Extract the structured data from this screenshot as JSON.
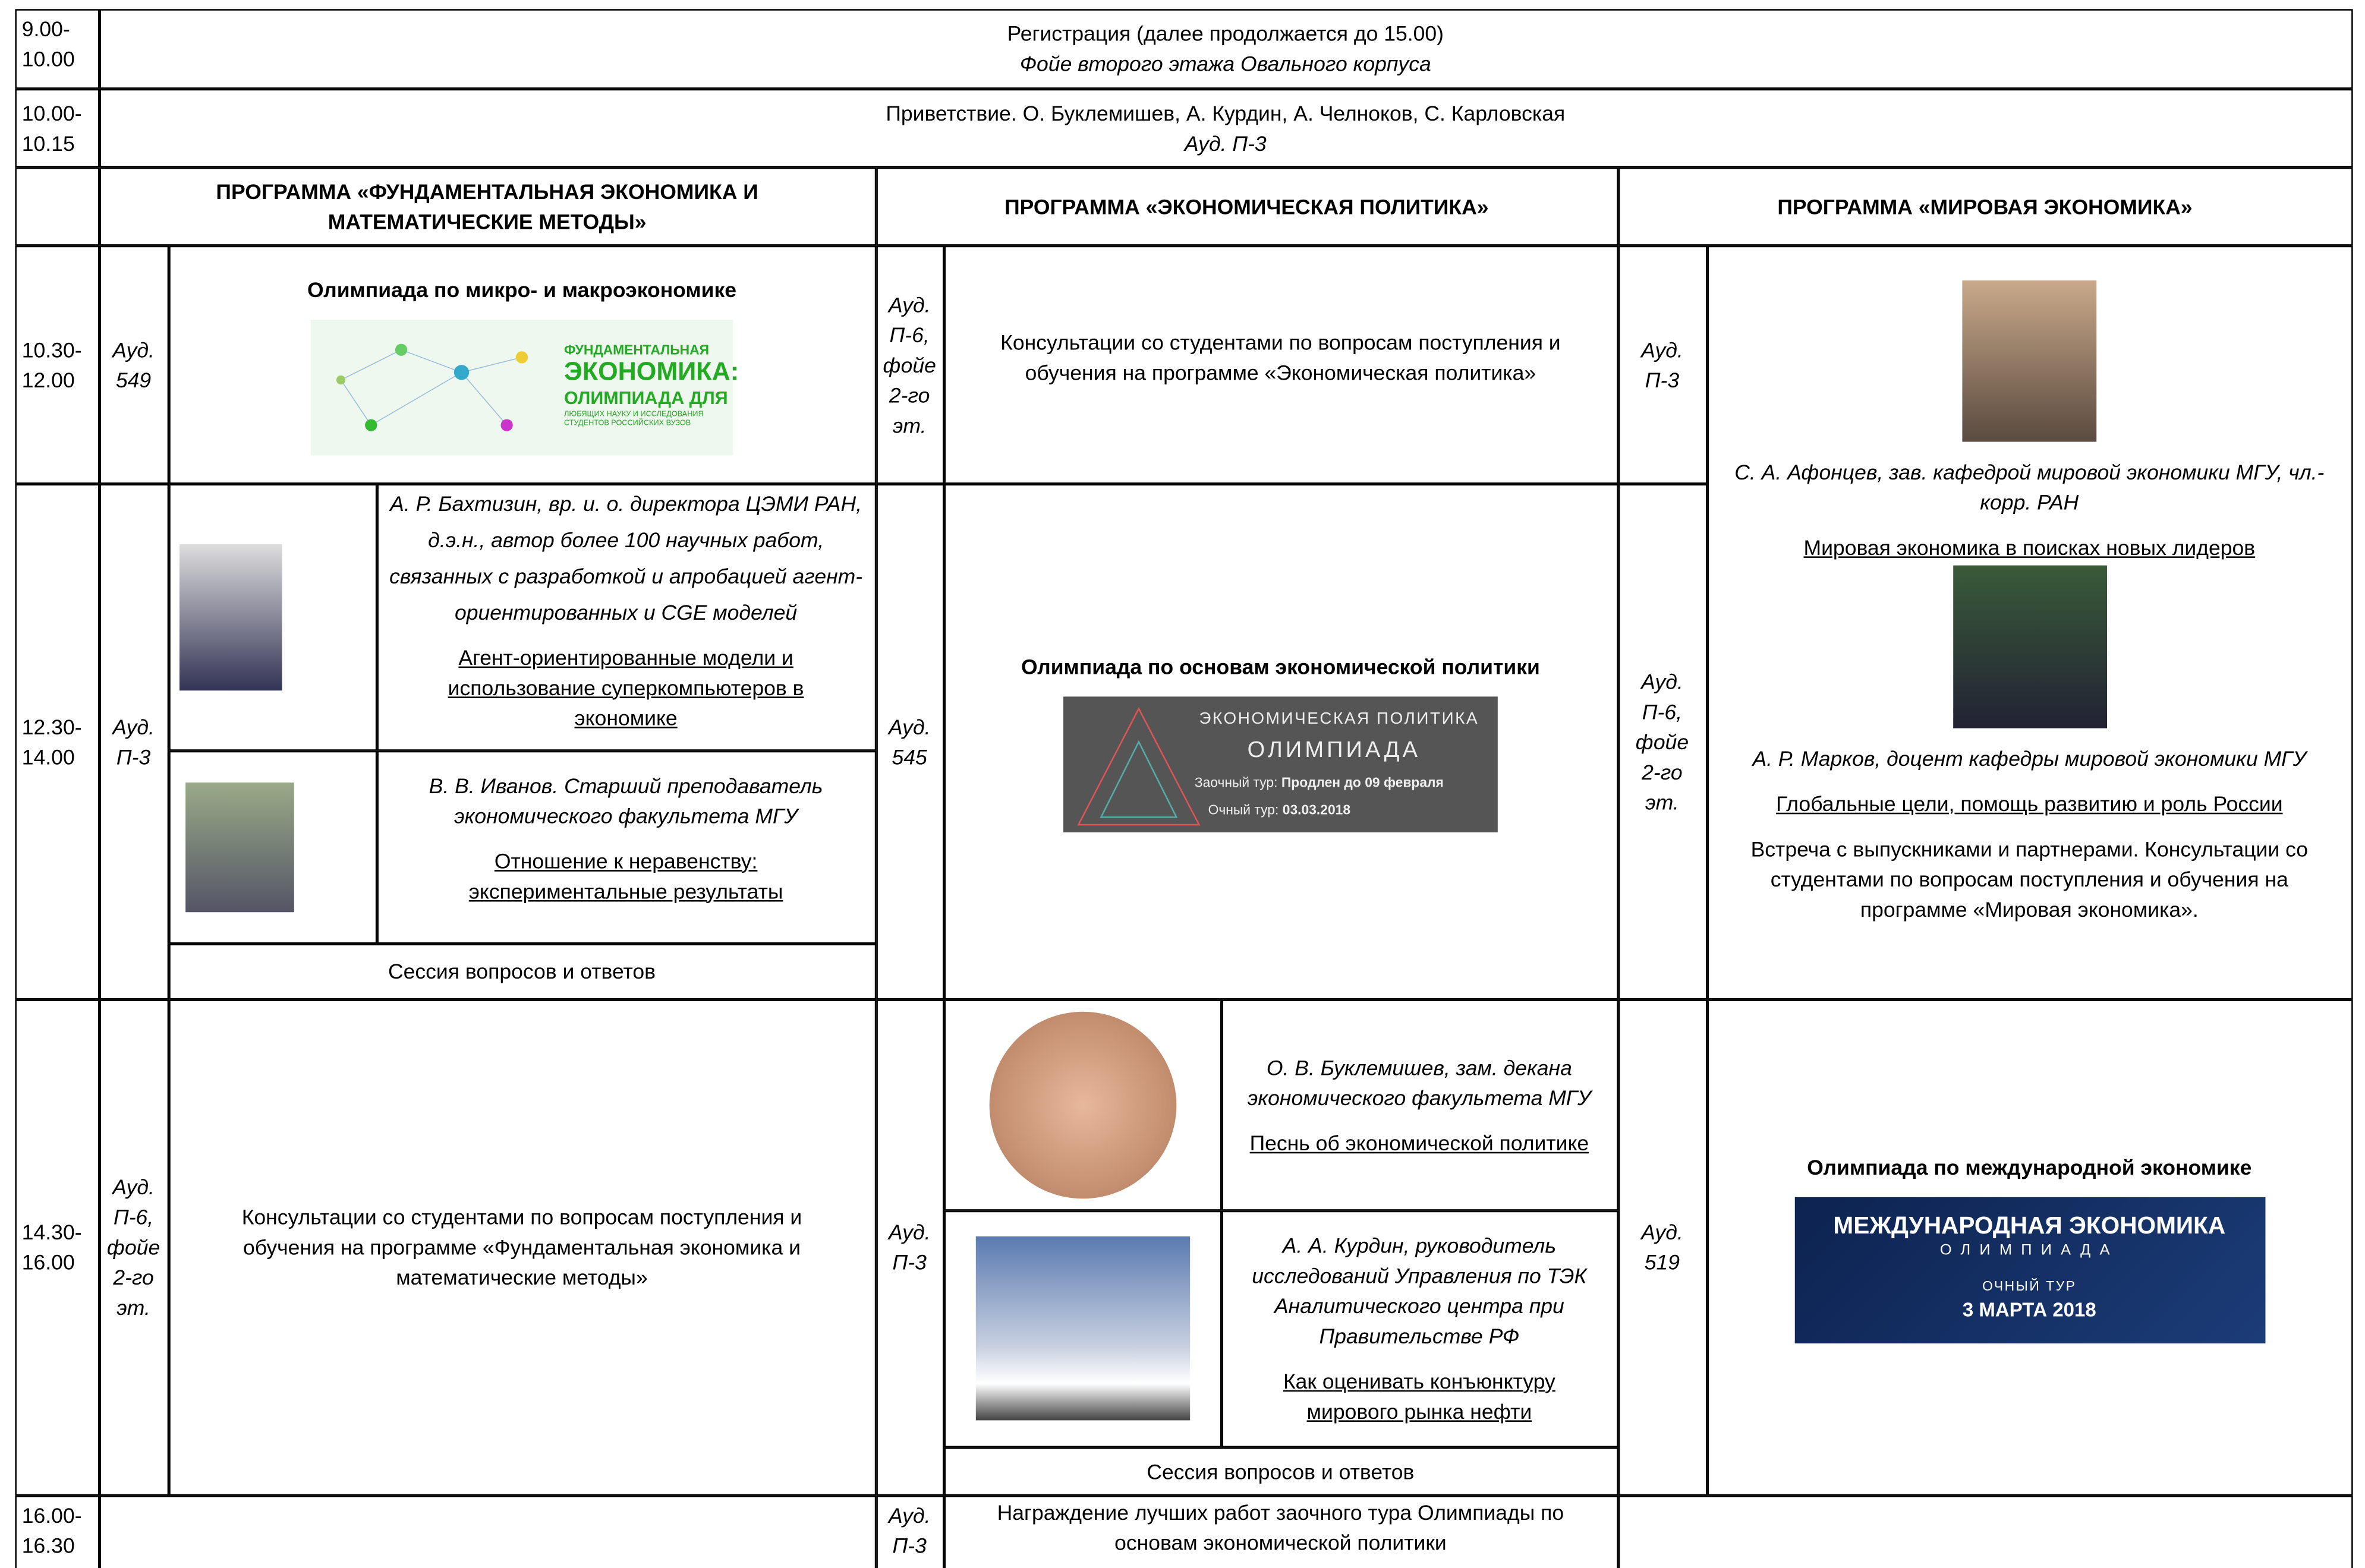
{
  "header_rows": [
    {
      "time": "9.00-10.00",
      "title": "Регистрация (далее продолжается до 15.00)",
      "place": "Фойе второго этажа Овального корпуса"
    },
    {
      "time": "10.00-10.15",
      "title": "Приветствие. О. Буклемишев, А. Курдин, А. Челноков, С. Карловская",
      "place": "Ауд. П-3"
    }
  ],
  "programs": [
    "ПРОГРАММА «ФУНДАМЕНТАЛЬНАЯ ЭКОНОМИКА И МАТЕМАТИЧЕСКИЕ МЕТОДЫ»",
    "ПРОГРАММА «ЭКОНОМИЧЕСКАЯ ПОЛИТИКА»",
    "ПРОГРАММА «МИРОВАЯ ЭКОНОМИКА»"
  ],
  "slots": [
    {
      "time": "10.30-12.00",
      "fundamental": {
        "room": "Ауд. 549",
        "title": "Олимпиада по микро- и макроэкономике",
        "banner": [
          "ФУНДАМЕНТАЛЬНАЯ",
          "ЭКОНОМИКА:",
          "ОЛИМПИАДА ДЛЯ",
          "ЛЮБЯЩИХ НАУКУ И ИССЛЕДОВАНИЯ СТУДЕНТОВ РОССИЙСКИХ ВУЗОВ"
        ]
      },
      "policy": {
        "room": "Ауд. П-6, фойе 2-го эт.",
        "text": "Консультации со студентами по вопросам поступления и обучения на программе «Экономическая политика»"
      },
      "world": {
        "room": "Ауд. П-3"
      }
    },
    {
      "time": "12.30-14.00",
      "fundamental": {
        "room": "Ауд. П-3",
        "talks": [
          {
            "speaker": "А. Р. Бахтизин, вр. и. о. директора ЦЭМИ РАН, д.э.н., автор более 100 научных работ, связанных с разработкой и апробацией агент-ориентированных и CGE моделей",
            "topic": "Агент-ориентированные модели и использование суперкомпьютеров в экономике"
          },
          {
            "speaker": "В. В. Иванов. Старший преподаватель экономического факультета МГУ",
            "topic": "Отношение к неравенству: экспериментальные результаты"
          }
        ],
        "qa": "Сессия вопросов и ответов"
      },
      "policy": {
        "room": "Ауд. 545",
        "title": "Олимпиада по основам экономической политики",
        "banner": [
          "ЭКОНОМИЧЕСКАЯ ПОЛИТИКА",
          "ОЛИМПИАДА",
          "Заочный тур:",
          "Продлен до 09 февраля",
          "Очный тур:",
          "03.03.2018"
        ]
      },
      "world": {
        "room": "Ауд. П-6, фойе 2-го эт."
      }
    },
    {
      "time": "14.30-16.00",
      "fundamental": {
        "room": "Ауд. П-6, фойе 2-го эт.",
        "text": "Консультации со студентами по вопросам поступления и обучения на программе «Фундаментальная экономика и математические методы»"
      },
      "policy": {
        "room": "Ауд. П-3",
        "talks": [
          {
            "speaker": "О. В. Буклемишев, зам. декана экономического факультета МГУ",
            "topic": "Песнь об экономической политике"
          },
          {
            "speaker": "А. А. Курдин, руководитель исследований Управления по ТЭК Аналитического центра при Правительстве РФ",
            "topic": "Как оценивать конъюнктуру мирового рынка нефти"
          }
        ],
        "qa": "Сессия вопросов и ответов"
      },
      "world": {
        "room": "Ауд. 519",
        "title": "Олимпиада по международной экономике",
        "banner": [
          "МЕЖДУНАРОДНАЯ ЭКОНОМИКА",
          "ОЛИМПИАДА",
          "ОЧНЫЙ ТУР",
          "3 МАРТА 2018"
        ]
      }
    },
    {
      "time": "16.00-16.30",
      "policy": {
        "room": "Ауд. П-3",
        "text": "Награждение лучших работ заочного тура Олимпиады по основам экономической политики"
      }
    }
  ],
  "world_block": {
    "talks": [
      {
        "speaker": "С. А. Афонцев, зав. кафедрой мировой экономики МГУ, чл.-корр. РАН",
        "topic": "Мировая экономика в поисках новых лидеров"
      },
      {
        "speaker": "А. Р. Марков, доцент кафедры мировой экономики МГУ",
        "topic": "Глобальные цели, помощь развитию и роль России"
      }
    ],
    "text": "Встреча с выпускниками и партнерами. Консультации со студентами по вопросам поступления и обучения на программе «Мировая экономика»."
  }
}
